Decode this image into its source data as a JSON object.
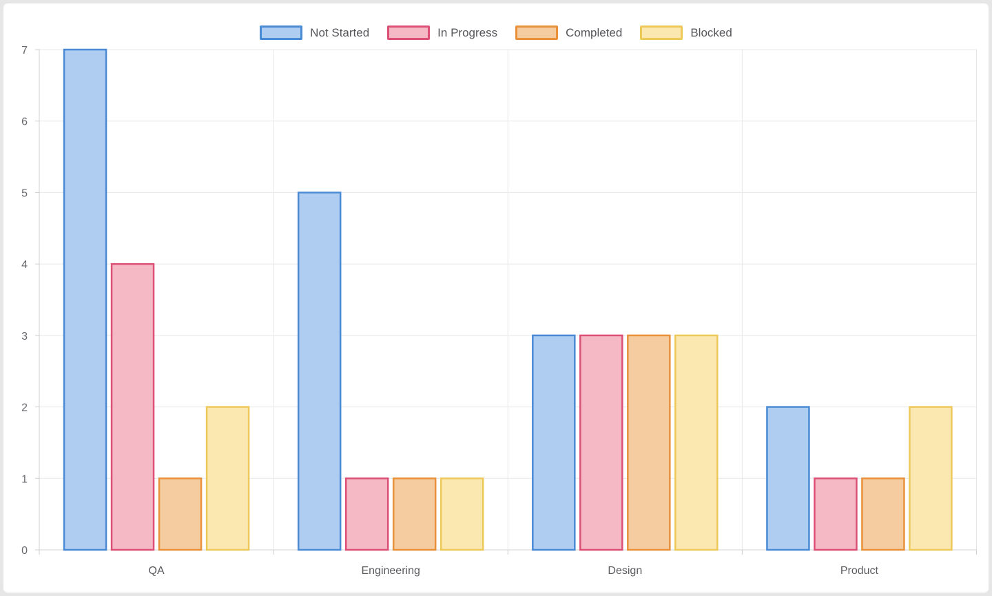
{
  "chart_data": {
    "type": "bar",
    "categories": [
      "QA",
      "Engineering",
      "Design",
      "Product"
    ],
    "series": [
      {
        "name": "Not Started",
        "values": [
          7,
          5,
          3,
          2
        ],
        "fill": "#aecdf1",
        "border": "#4a8ad4"
      },
      {
        "name": "In Progress",
        "values": [
          4,
          1,
          3,
          1
        ],
        "fill": "#f5b9c6",
        "border": "#dc5075"
      },
      {
        "name": "Completed",
        "values": [
          1,
          1,
          3,
          1
        ],
        "fill": "#f5cc9f",
        "border": "#e8913a"
      },
      {
        "name": "Blocked",
        "values": [
          2,
          1,
          3,
          2
        ],
        "fill": "#fae8b0",
        "border": "#edc95a"
      }
    ],
    "yticks": [
      0,
      1,
      2,
      3,
      4,
      5,
      6,
      7
    ],
    "ylim": [
      0,
      7
    ],
    "grid": true,
    "legend_position": "top",
    "colors": {
      "grid_line": "#e7e7e7",
      "axis_line": "#d2d2d2",
      "tick_mark": "#cfcfcf"
    }
  }
}
